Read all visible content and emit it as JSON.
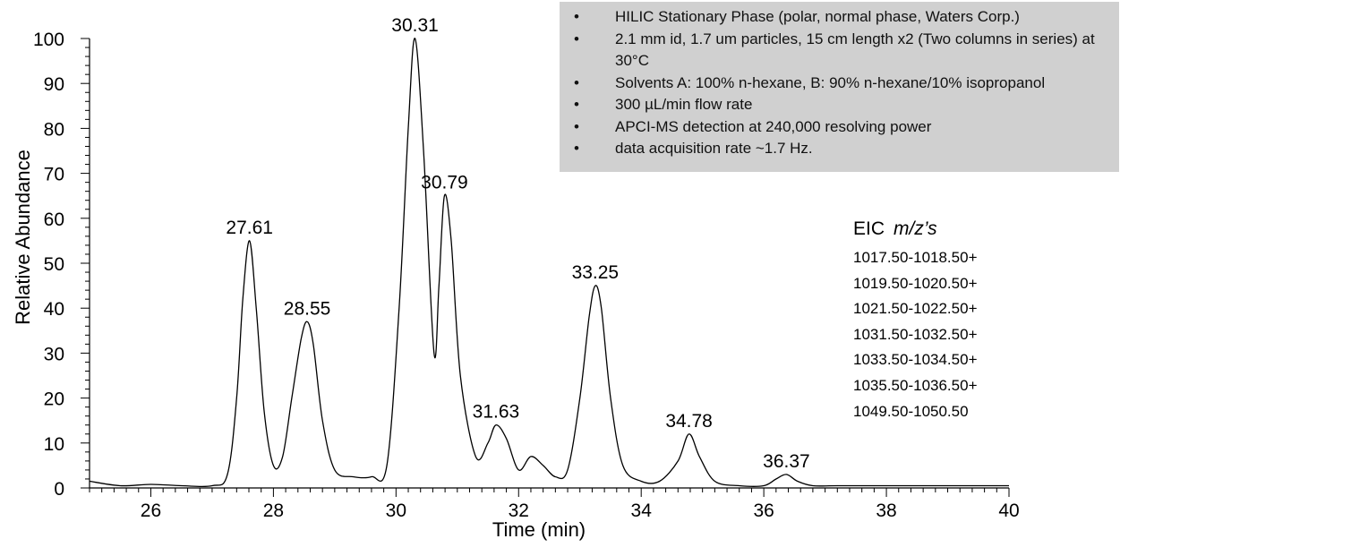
{
  "chart_data": {
    "type": "line",
    "xlabel": "Time (min)",
    "ylabel": "Relative Abundance",
    "xlim": [
      25,
      40
    ],
    "ylim": [
      0,
      100
    ],
    "x_ticks": [
      "26",
      "28",
      "30",
      "32",
      "34",
      "36",
      "38",
      "40"
    ],
    "y_ticks": [
      "0",
      "10",
      "20",
      "30",
      "40",
      "50",
      "60",
      "70",
      "80",
      "90",
      "100"
    ],
    "series": [
      {
        "x": [
          25.0,
          25.5,
          26.0,
          26.5,
          27.0,
          27.25,
          27.4,
          27.5,
          27.61,
          27.72,
          27.85,
          28.0,
          28.15,
          28.3,
          28.45,
          28.55,
          28.65,
          28.8,
          29.0,
          29.3,
          29.6,
          29.85,
          30.05,
          30.2,
          30.31,
          30.45,
          30.62,
          30.7,
          30.79,
          30.9,
          31.05,
          31.3,
          31.5,
          31.63,
          31.8,
          32.0,
          32.2,
          32.4,
          32.6,
          32.8,
          33.0,
          33.15,
          33.25,
          33.35,
          33.5,
          33.7,
          34.0,
          34.3,
          34.6,
          34.78,
          34.95,
          35.2,
          35.6,
          36.0,
          36.2,
          36.37,
          36.55,
          36.8,
          37.2,
          38.0,
          39.0,
          40.0
        ],
        "y": [
          1.5,
          0.5,
          0.8,
          0.5,
          0.5,
          3,
          20,
          42,
          55,
          40,
          17,
          5,
          7,
          20,
          33,
          37,
          32,
          15,
          4,
          2.5,
          2.5,
          5,
          40,
          80,
          100,
          75,
          30,
          45,
          65,
          55,
          25,
          7,
          10,
          14,
          11,
          4,
          7,
          5,
          2.5,
          4,
          20,
          38,
          45,
          40,
          20,
          5,
          1.5,
          1.5,
          6,
          12,
          7,
          1.5,
          0.5,
          0.5,
          2,
          3,
          1.5,
          0.5,
          0.5,
          0.5,
          0.5,
          0.5
        ]
      }
    ],
    "peak_labels": [
      {
        "label": "27.61",
        "x": 27.61,
        "y": 55
      },
      {
        "label": "28.55",
        "x": 28.55,
        "y": 37
      },
      {
        "label": "30.31",
        "x": 30.31,
        "y": 100
      },
      {
        "label": "30.79",
        "x": 30.79,
        "y": 65
      },
      {
        "label": "31.63",
        "x": 31.63,
        "y": 14
      },
      {
        "label": "33.25",
        "x": 33.25,
        "y": 45
      },
      {
        "label": "34.78",
        "x": 34.78,
        "y": 12
      },
      {
        "label": "36.37",
        "x": 36.37,
        "y": 3
      }
    ],
    "line_color": "#000000",
    "grid": false
  },
  "info_box": {
    "bullet": "•",
    "items": [
      "HILIC Stationary Phase (polar, normal phase,  Waters Corp.)",
      "2.1 mm id, 1.7 um particles, 15 cm length x2 (Two columns in series) at 30°C",
      "Solvents A: 100% n-hexane,  B: 90% n-hexane/10% isopropanol",
      "300 µL/min flow rate",
      "APCI-MS detection at 240,000 resolving power",
      "data acquisition rate ~1.7 Hz."
    ],
    "background": "#d0d0d0"
  },
  "eic": {
    "title": "EIC",
    "title_italic": "m/z’s",
    "items": [
      "1017.50-1018.50+",
      "1019.50-1020.50+",
      "1021.50-1022.50+",
      "1031.50-1032.50+",
      "1033.50-1034.50+",
      "1035.50-1036.50+",
      "1049.50-1050.50"
    ]
  }
}
